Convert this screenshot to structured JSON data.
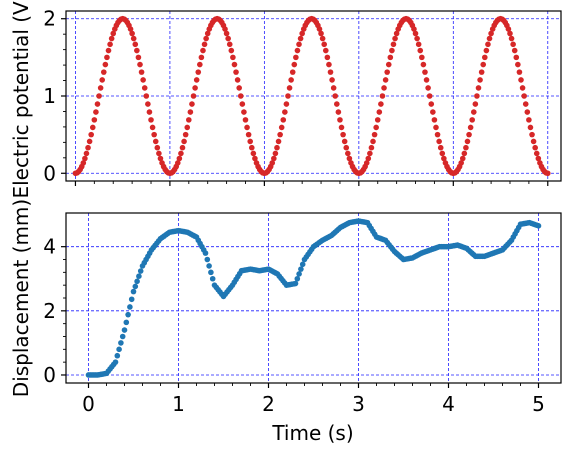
{
  "chart_data": [
    {
      "type": "scatter",
      "ylabel": "Electric potential (V)",
      "xlim": [
        -0.1,
        5.14
      ],
      "ylim": [
        -0.1,
        2.1
      ],
      "xticks": [
        0,
        1,
        2,
        3,
        4,
        5
      ],
      "yticks": [
        0,
        1,
        2
      ],
      "xtick_labels_visible": false,
      "grid": true,
      "series": [
        {
          "color": "#d62728",
          "waveform": {
            "shape": "raised-cosine",
            "amplitude_min": 0,
            "amplitude_max": 2,
            "period": 1,
            "x_start": 0,
            "x_end": 5
          }
        }
      ]
    },
    {
      "type": "scatter",
      "xlabel": "Time (s)",
      "ylabel": "Displacement (mm)",
      "xlim": [
        -0.25,
        5.25
      ],
      "ylim": [
        -0.25,
        5.05
      ],
      "xticks": [
        0,
        1,
        2,
        3,
        4,
        5
      ],
      "yticks": [
        0,
        2,
        4
      ],
      "grid": true,
      "series": [
        {
          "color": "#1f77b4",
          "x": [
            0,
            0.1,
            0.2,
            0.3,
            0.4,
            0.5,
            0.6,
            0.7,
            0.8,
            0.9,
            1.0,
            1.1,
            1.2,
            1.3,
            1.4,
            1.5,
            1.6,
            1.7,
            1.8,
            1.9,
            2.0,
            2.1,
            2.2,
            2.3,
            2.4,
            2.5,
            2.6,
            2.7,
            2.8,
            2.9,
            3.0,
            3.1,
            3.2,
            3.3,
            3.4,
            3.5,
            3.6,
            3.7,
            3.8,
            3.9,
            4.0,
            4.1,
            4.2,
            4.3,
            4.4,
            4.5,
            4.6,
            4.7,
            4.8,
            4.9,
            5.0
          ],
          "y": [
            0,
            0,
            0.05,
            0.4,
            1.4,
            2.6,
            3.4,
            3.9,
            4.25,
            4.45,
            4.5,
            4.45,
            4.3,
            3.8,
            2.8,
            2.45,
            2.8,
            3.25,
            3.3,
            3.25,
            3.3,
            3.15,
            2.8,
            2.85,
            3.6,
            4.0,
            4.2,
            4.35,
            4.6,
            4.75,
            4.8,
            4.75,
            4.3,
            4.2,
            3.85,
            3.6,
            3.65,
            3.8,
            3.9,
            4.0,
            4.0,
            4.05,
            3.95,
            3.7,
            3.7,
            3.8,
            3.9,
            4.2,
            4.7,
            4.75,
            4.65
          ]
        }
      ]
    }
  ]
}
